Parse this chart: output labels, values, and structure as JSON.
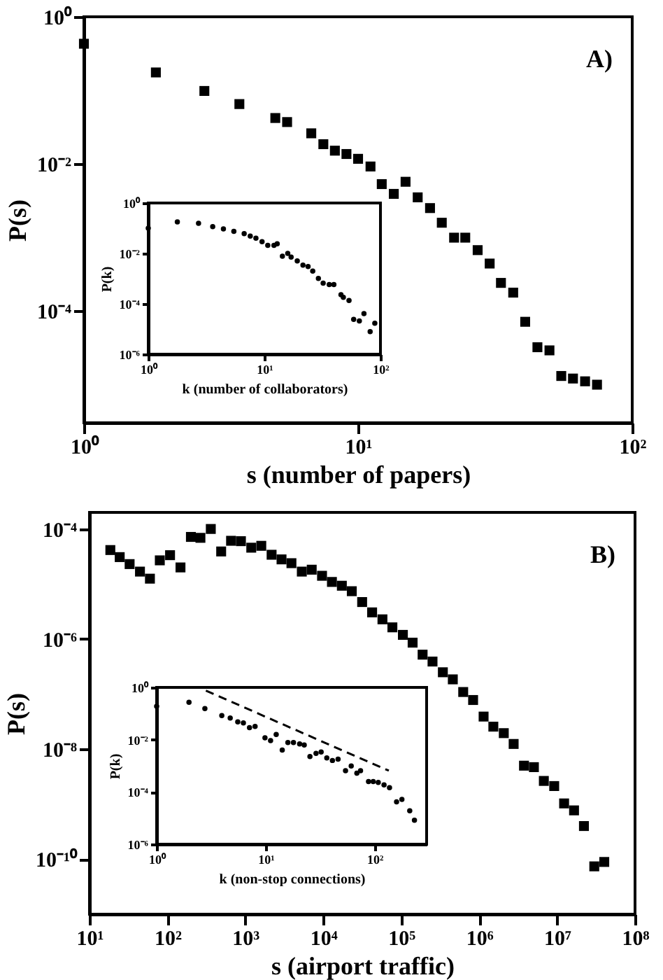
{
  "chart_data": [
    {
      "type": "scatter",
      "xlabel": "s (number of papers)",
      "ylabel": "P(s)",
      "annotations": [
        "A)"
      ],
      "log": "xy",
      "marker": "square",
      "xlim": [
        1,
        100
      ],
      "xticks": [
        {
          "value": 1,
          "label": "10⁰"
        },
        {
          "value": 10,
          "label": "10¹"
        },
        {
          "value": 100,
          "label": "10²"
        }
      ],
      "ylim": [
        3e-06,
        1
      ],
      "yticks": [
        {
          "value": 1,
          "label": "10⁰"
        },
        {
          "value": 0.01,
          "label": "10⁻²"
        },
        {
          "value": 0.0001,
          "label": "10⁻⁴"
        }
      ],
      "x": [
        1,
        1.83,
        2.75,
        3.69,
        4.99,
        5.51,
        6.75,
        7.47,
        8.23,
        9.07,
        10.0,
        11.1,
        12.2,
        13.5,
        14.9,
        16.5,
        18.3,
        20.2,
        22.4,
        24.6,
        27.3,
        30.2,
        33.2,
        36.8,
        40.7,
        45.1,
        49.9,
        55.1,
        60.8,
        67.3,
        74.4
      ],
      "series": [
        {
          "color": "#000000",
          "values": [
            0.43,
            0.175,
            0.098,
            0.065,
            0.042,
            0.037,
            0.026,
            0.0185,
            0.0151,
            0.0136,
            0.0117,
            0.0092,
            0.0053,
            0.0039,
            0.0057,
            0.0035,
            0.0025,
            0.00158,
            0.00099,
            0.00099,
            0.00067,
            0.00044,
            0.00024,
            0.000177,
            7.1e-05,
            3.2e-05,
            2.9e-05,
            1.3e-05,
            1.2e-05,
            1.1e-05,
            9.9e-06
          ]
        }
      ]
    },
    {
      "type": "scatter",
      "xlabel": "k (number of collaborators)",
      "ylabel": "P(k)",
      "log": "xy",
      "marker": "circle",
      "xlim": [
        1,
        100
      ],
      "xticks": [
        {
          "value": 1,
          "label": "10⁰"
        },
        {
          "value": 10,
          "label": "10¹"
        },
        {
          "value": 100,
          "label": "10²"
        }
      ],
      "ylim": [
        1e-06,
        1
      ],
      "yticks": [
        {
          "value": 1,
          "label": "10⁰"
        },
        {
          "value": 0.01,
          "label": "10⁻²"
        },
        {
          "value": 0.0001,
          "label": "10⁻⁴"
        },
        {
          "value": 1e-06,
          "label": "10⁻⁶"
        }
      ],
      "x": [
        1,
        1.78,
        2.71,
        3.59,
        4.44,
        5.46,
        6.7,
        7.56,
        8.46,
        9.55,
        10.7,
        12.1,
        12.9,
        14.3,
        15.9,
        17.0,
        19.2,
        21.5,
        23.8,
        26.1,
        29.2,
        32.1,
        36.2,
        39.7,
        45.7,
        47.9,
        53.6,
        58.8,
        65.8,
        72.1,
        81.5,
        89.4
      ],
      "series": [
        {
          "color": "#000000",
          "values": [
            0.1,
            0.179,
            0.157,
            0.116,
            0.094,
            0.075,
            0.061,
            0.049,
            0.04,
            0.029,
            0.021,
            0.021,
            0.024,
            0.0077,
            0.01,
            0.0071,
            0.005,
            0.0034,
            0.003,
            0.002,
            0.00102,
            0.00066,
            0.00058,
            0.00058,
            0.00023,
            0.00018,
            0.000135,
            2.4e-05,
            2.1e-05,
            4.1e-05,
            7.9e-06,
            1.7e-05
          ]
        }
      ]
    },
    {
      "type": "scatter",
      "xlabel": "s (airport traffic)",
      "ylabel": "P(s)",
      "annotations": [
        "B)"
      ],
      "log": "xy",
      "marker": "square",
      "xlim": [
        10,
        100000000
      ],
      "xticks": [
        {
          "value": 10,
          "label": "10¹"
        },
        {
          "value": 100,
          "label": "10²"
        },
        {
          "value": 1000,
          "label": "10³"
        },
        {
          "value": 10000,
          "label": "10⁴"
        },
        {
          "value": 100000,
          "label": "10⁵"
        },
        {
          "value": 1000000,
          "label": "10⁶"
        },
        {
          "value": 10000000,
          "label": "10⁷"
        },
        {
          "value": 100000000,
          "label": "10⁸"
        }
      ],
      "ylim": [
        1e-11,
        0.0002
      ],
      "yticks": [
        {
          "value": 0.0001,
          "label": "10⁻⁴"
        },
        {
          "value": 1e-06,
          "label": "10⁻⁶"
        },
        {
          "value": 1e-08,
          "label": "10⁻⁸"
        },
        {
          "value": 1e-10,
          "label": "10⁻¹⁰"
        }
      ],
      "x": [
        18.5,
        24.4,
        32.7,
        44.4,
        59.6,
        79.8,
        108,
        147,
        200,
        265,
        360,
        489,
        655,
        877,
        1190,
        1600,
        2170,
        2910,
        3900,
        5300,
        7100,
        9630,
        12900,
        17300,
        23200,
        31500,
        42300,
        57400,
        77000,
        105000,
        140000,
        188000,
        252000,
        342000,
        459000,
        624000,
        836000,
        1140000,
        1520000,
        2070000,
        2770000,
        3760000,
        5040000,
        6760000,
        9180000,
        12300000,
        16500000,
        22100000,
        30000000,
        40300000
      ],
      "series": [
        {
          "color": "#000000",
          "values": [
            4.14e-05,
            3.08e-05,
            2.3e-05,
            1.68e-05,
            1.25e-05,
            2.69e-05,
            3.34e-05,
            2e-05,
            7.17e-05,
            6.9e-05,
            0.0001,
            3.9e-05,
            6.1e-05,
            6e-05,
            4.57e-05,
            4.94e-05,
            3.4e-05,
            2.8e-05,
            2.39e-05,
            1.68e-05,
            1.82e-05,
            1.41e-05,
            1.09e-05,
            9.3e-06,
            7.4e-06,
            4.7e-06,
            3.05e-06,
            2.28e-06,
            1.63e-06,
            1.19e-06,
            8.6e-07,
            5.2e-07,
            3.9e-07,
            2.49e-07,
            1.85e-07,
            1.09e-07,
            7.8e-08,
            3.9e-08,
            2.56e-08,
            1.95e-08,
            1.24e-08,
            5e-09,
            4.7e-09,
            2.64e-09,
            2.13e-09,
            1.03e-09,
            7.7e-10,
            4e-10,
            7.4e-11,
            8.9e-11
          ]
        }
      ]
    },
    {
      "type": "scatter",
      "xlabel": "k (non-stop connections)",
      "ylabel": "P(k)",
      "log": "xy",
      "marker": "circle",
      "xlim": [
        1,
        300
      ],
      "xticks": [
        {
          "value": 1,
          "label": "10⁰"
        },
        {
          "value": 10,
          "label": "10¹"
        },
        {
          "value": 100,
          "label": "10²"
        }
      ],
      "ylim": [
        1e-06,
        1
      ],
      "yticks": [
        {
          "value": 1,
          "label": "10⁰"
        },
        {
          "value": 0.01,
          "label": "10⁻²"
        },
        {
          "value": 0.0001,
          "label": "10⁻⁴"
        },
        {
          "value": 1e-06,
          "label": "10⁻⁶"
        }
      ],
      "x": [
        1,
        1.98,
        2.77,
        3.96,
        4.73,
        5.55,
        6.25,
        7.11,
        8.0,
        9.86,
        11.1,
        12.5,
        14.2,
        16.0,
        18.0,
        20.5,
        22.6,
        25.5,
        29.0,
        32.3,
        36.4,
        41.0,
        46.2,
        54.1,
        61.0,
        68.7,
        74.3,
        87.9,
        97.1,
        108,
        122,
        137,
        159,
        178,
        210,
        232
      ],
      "series": [
        {
          "color": "#000000",
          "values": [
            0.19,
            0.27,
            0.155,
            0.083,
            0.067,
            0.048,
            0.044,
            0.029,
            0.032,
            0.0118,
            0.0092,
            0.0158,
            0.004,
            0.0078,
            0.0078,
            0.0069,
            0.0063,
            0.00225,
            0.003,
            0.0034,
            0.002,
            0.0016,
            0.0018,
            0.00065,
            0.00098,
            0.00052,
            0.00065,
            0.00025,
            0.00025,
            0.00023,
            0.000186,
            0.000145,
            4.2e-05,
            5.2e-05,
            1.9e-05,
            8.3e-06
          ]
        },
        {
          "type": "line",
          "line_style": "dashed",
          "marker": "none",
          "color": "#000000",
          "x": [
            2.83,
            135
          ],
          "values": [
            0.75,
            0.00065
          ]
        }
      ]
    }
  ]
}
